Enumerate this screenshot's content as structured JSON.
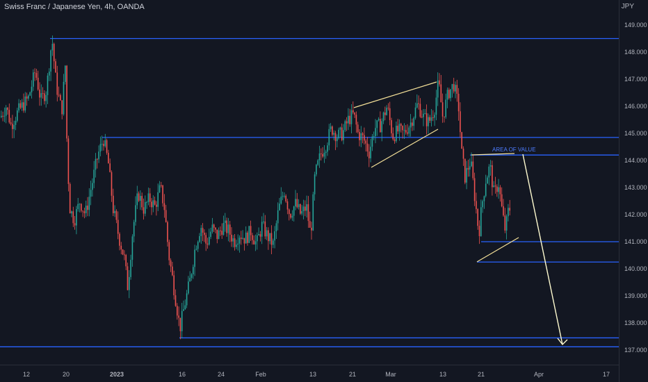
{
  "header": {
    "title": "Swiss Franc / Japanese Yen, 4h, OANDA"
  },
  "axis": {
    "currency": "JPY"
  },
  "colors": {
    "background": "#131722",
    "up": "#26a69a",
    "down": "#ef5350",
    "level": "#2962ff",
    "trendline": "#f5e199",
    "projection": "#fffbd0"
  },
  "chart_data": {
    "type": "candlestick",
    "symbol": "CHFJPY",
    "timeframe": "4h",
    "ylim": [
      136.6,
      149.5
    ],
    "y_ticks": [
      137.0,
      138.0,
      139.0,
      140.0,
      141.0,
      142.0,
      143.0,
      144.0,
      145.0,
      146.0,
      147.0,
      148.0,
      149.0
    ],
    "y_tick_labels": [
      "137.000",
      "138.000",
      "139.000",
      "140.000",
      "141.000",
      "142.000",
      "143.000",
      "144.000",
      "145.000",
      "146.000",
      "147.000",
      "148.000",
      "149.000"
    ],
    "x_tick_labels": [
      "12",
      "20",
      "2023",
      "16",
      "24",
      "Feb",
      "13",
      "21",
      "Mar",
      "13",
      "21",
      "Apr",
      "17"
    ],
    "price_path": [
      [
        0,
        145.6
      ],
      [
        8,
        146.0
      ],
      [
        15,
        145.3
      ],
      [
        25,
        145.8
      ],
      [
        40,
        146.3
      ],
      [
        50,
        147.3
      ],
      [
        58,
        146.2
      ],
      [
        66,
        146.6
      ],
      [
        74,
        148.5
      ],
      [
        80,
        146.8
      ],
      [
        88,
        145.8
      ],
      [
        93,
        147.5
      ],
      [
        96,
        144.0
      ],
      [
        100,
        142.2
      ],
      [
        106,
        141.8
      ],
      [
        114,
        142.5
      ],
      [
        122,
        142.0
      ],
      [
        132,
        143.2
      ],
      [
        140,
        144.2
      ],
      [
        148,
        144.8
      ],
      [
        155,
        143.9
      ],
      [
        162,
        142.2
      ],
      [
        170,
        141.2
      ],
      [
        178,
        140.4
      ],
      [
        183,
        139.3
      ],
      [
        190,
        141.4
      ],
      [
        198,
        142.8
      ],
      [
        206,
        142.2
      ],
      [
        214,
        142.6
      ],
      [
        222,
        142.3
      ],
      [
        230,
        143.0
      ],
      [
        236,
        142.2
      ],
      [
        242,
        140.5
      ],
      [
        250,
        139.2
      ],
      [
        258,
        137.8
      ],
      [
        265,
        138.7
      ],
      [
        272,
        139.5
      ],
      [
        280,
        140.8
      ],
      [
        288,
        141.6
      ],
      [
        296,
        140.9
      ],
      [
        304,
        141.5
      ],
      [
        312,
        141.2
      ],
      [
        320,
        141.6
      ],
      [
        328,
        141.4
      ],
      [
        336,
        141.0
      ],
      [
        344,
        141.3
      ],
      [
        352,
        141.1
      ],
      [
        360,
        141.4
      ],
      [
        368,
        140.9
      ],
      [
        376,
        141.6
      ],
      [
        384,
        141.2
      ],
      [
        392,
        140.9
      ],
      [
        400,
        142.2
      ],
      [
        408,
        142.9
      ],
      [
        416,
        142.0
      ],
      [
        424,
        142.4
      ],
      [
        432,
        142.0
      ],
      [
        440,
        142.3
      ],
      [
        446,
        141.2
      ],
      [
        452,
        143.4
      ],
      [
        460,
        144.2
      ],
      [
        468,
        144.6
      ],
      [
        476,
        145.2
      ],
      [
        484,
        144.9
      ],
      [
        492,
        145.0
      ],
      [
        500,
        145.5
      ],
      [
        508,
        145.7
      ],
      [
        514,
        145.0
      ],
      [
        522,
        144.8
      ],
      [
        530,
        144.3
      ],
      [
        538,
        145.2
      ],
      [
        546,
        145.3
      ],
      [
        556,
        146.0
      ],
      [
        564,
        144.9
      ],
      [
        572,
        145.1
      ],
      [
        580,
        145.0
      ],
      [
        590,
        145.4
      ],
      [
        600,
        146.1
      ],
      [
        608,
        145.6
      ],
      [
        616,
        145.4
      ],
      [
        624,
        145.9
      ],
      [
        630,
        146.9
      ],
      [
        636,
        145.6
      ],
      [
        644,
        146.5
      ],
      [
        652,
        146.8
      ],
      [
        660,
        145.8
      ],
      [
        662,
        144.5
      ],
      [
        668,
        143.4
      ],
      [
        676,
        144.0
      ],
      [
        684,
        142.2
      ],
      [
        688,
        141.3
      ],
      [
        692,
        142.3
      ],
      [
        698,
        143.3
      ],
      [
        704,
        143.8
      ],
      [
        710,
        142.7
      ],
      [
        716,
        143.2
      ],
      [
        722,
        142.0
      ],
      [
        726,
        141.4
      ],
      [
        730,
        142.1
      ],
      [
        734,
        142.3
      ]
    ],
    "levels": [
      148.5,
      144.85,
      144.2,
      141.0,
      140.25,
      137.45,
      137.12
    ],
    "annotations": [
      {
        "text": "AREA OF VALUE"
      }
    ]
  }
}
